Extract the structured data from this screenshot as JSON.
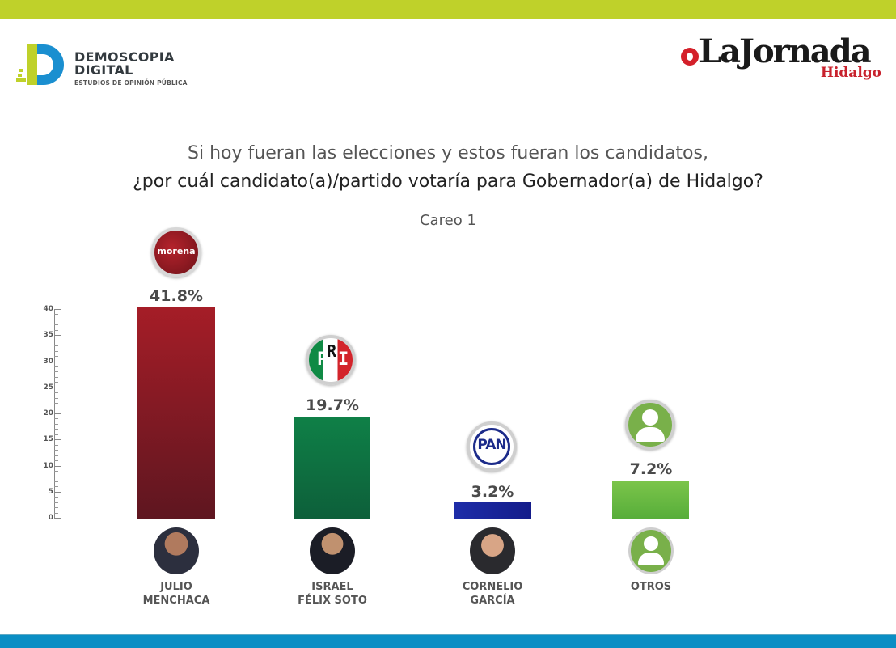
{
  "header": {
    "top_band_color": "#bfd12a",
    "bottom_band_color": "#0a8ec4",
    "left_logo": {
      "name_line1": "DEMOSCOPIA",
      "name_line2": "DIGITAL",
      "tagline": "ESTUDIOS DE OPINIÓN PÚBLICA"
    },
    "right_logo": {
      "name": "LaJornada",
      "sub": "Hidalgo"
    }
  },
  "chart_data": {
    "type": "bar",
    "title": "Si hoy fueran las elecciones y estos fueran los candidatos, ¿por cuál candidato(a)/partido votaría para Gobernador(a) de Hidalgo?",
    "subtitle": "Careo 1",
    "categories": [
      "JULIO MENCHACA",
      "ISRAEL FÉLIX SOTO",
      "CORNELIO GARCÍA",
      "OTROS"
    ],
    "parties": [
      "morena",
      "PRI",
      "PAN",
      "Otros"
    ],
    "values": [
      41.8,
      19.7,
      3.2,
      7.2
    ],
    "value_labels": [
      "41.8%",
      "19.7%",
      "3.2%",
      "7.2%"
    ],
    "colors": [
      "#9e1b24",
      "#0d7a47",
      "#1a23a0",
      "#6cbd45"
    ],
    "xlabel": "",
    "ylabel": "",
    "ylim": [
      0,
      40
    ],
    "yticks": [
      0,
      5,
      10,
      15,
      20,
      25,
      30,
      35,
      40
    ],
    "grid": false,
    "legend": "none"
  },
  "titles": {
    "line1": "Si hoy fueran las elecciones y estos fueran los candidatos,",
    "line2": "¿por cuál candidato(a)/partido votaría para Gobernador(a) de Hidalgo?",
    "subtitle": "Careo 1"
  },
  "axis": {
    "ticks": [
      "40",
      "35",
      "30",
      "25",
      "20",
      "15",
      "10",
      "5",
      "0"
    ]
  },
  "candidates": [
    {
      "name_line1": "JULIO",
      "name_line2": "MENCHACA",
      "party": "morena",
      "pct": "41.8%"
    },
    {
      "name_line1": "ISRAEL",
      "name_line2": "FÉLIX SOTO",
      "party": "PRI",
      "pct": "19.7%"
    },
    {
      "name_line1": "CORNELIO",
      "name_line2": "GARCÍA",
      "party": "PAN",
      "pct": "3.2%"
    },
    {
      "name_line1": "OTROS",
      "name_line2": "",
      "party": "",
      "pct": "7.2%"
    }
  ],
  "logos": {
    "morena": "morena",
    "pri_p": "P",
    "pri_r": "R",
    "pri_i": "I",
    "pan": "PAN"
  }
}
